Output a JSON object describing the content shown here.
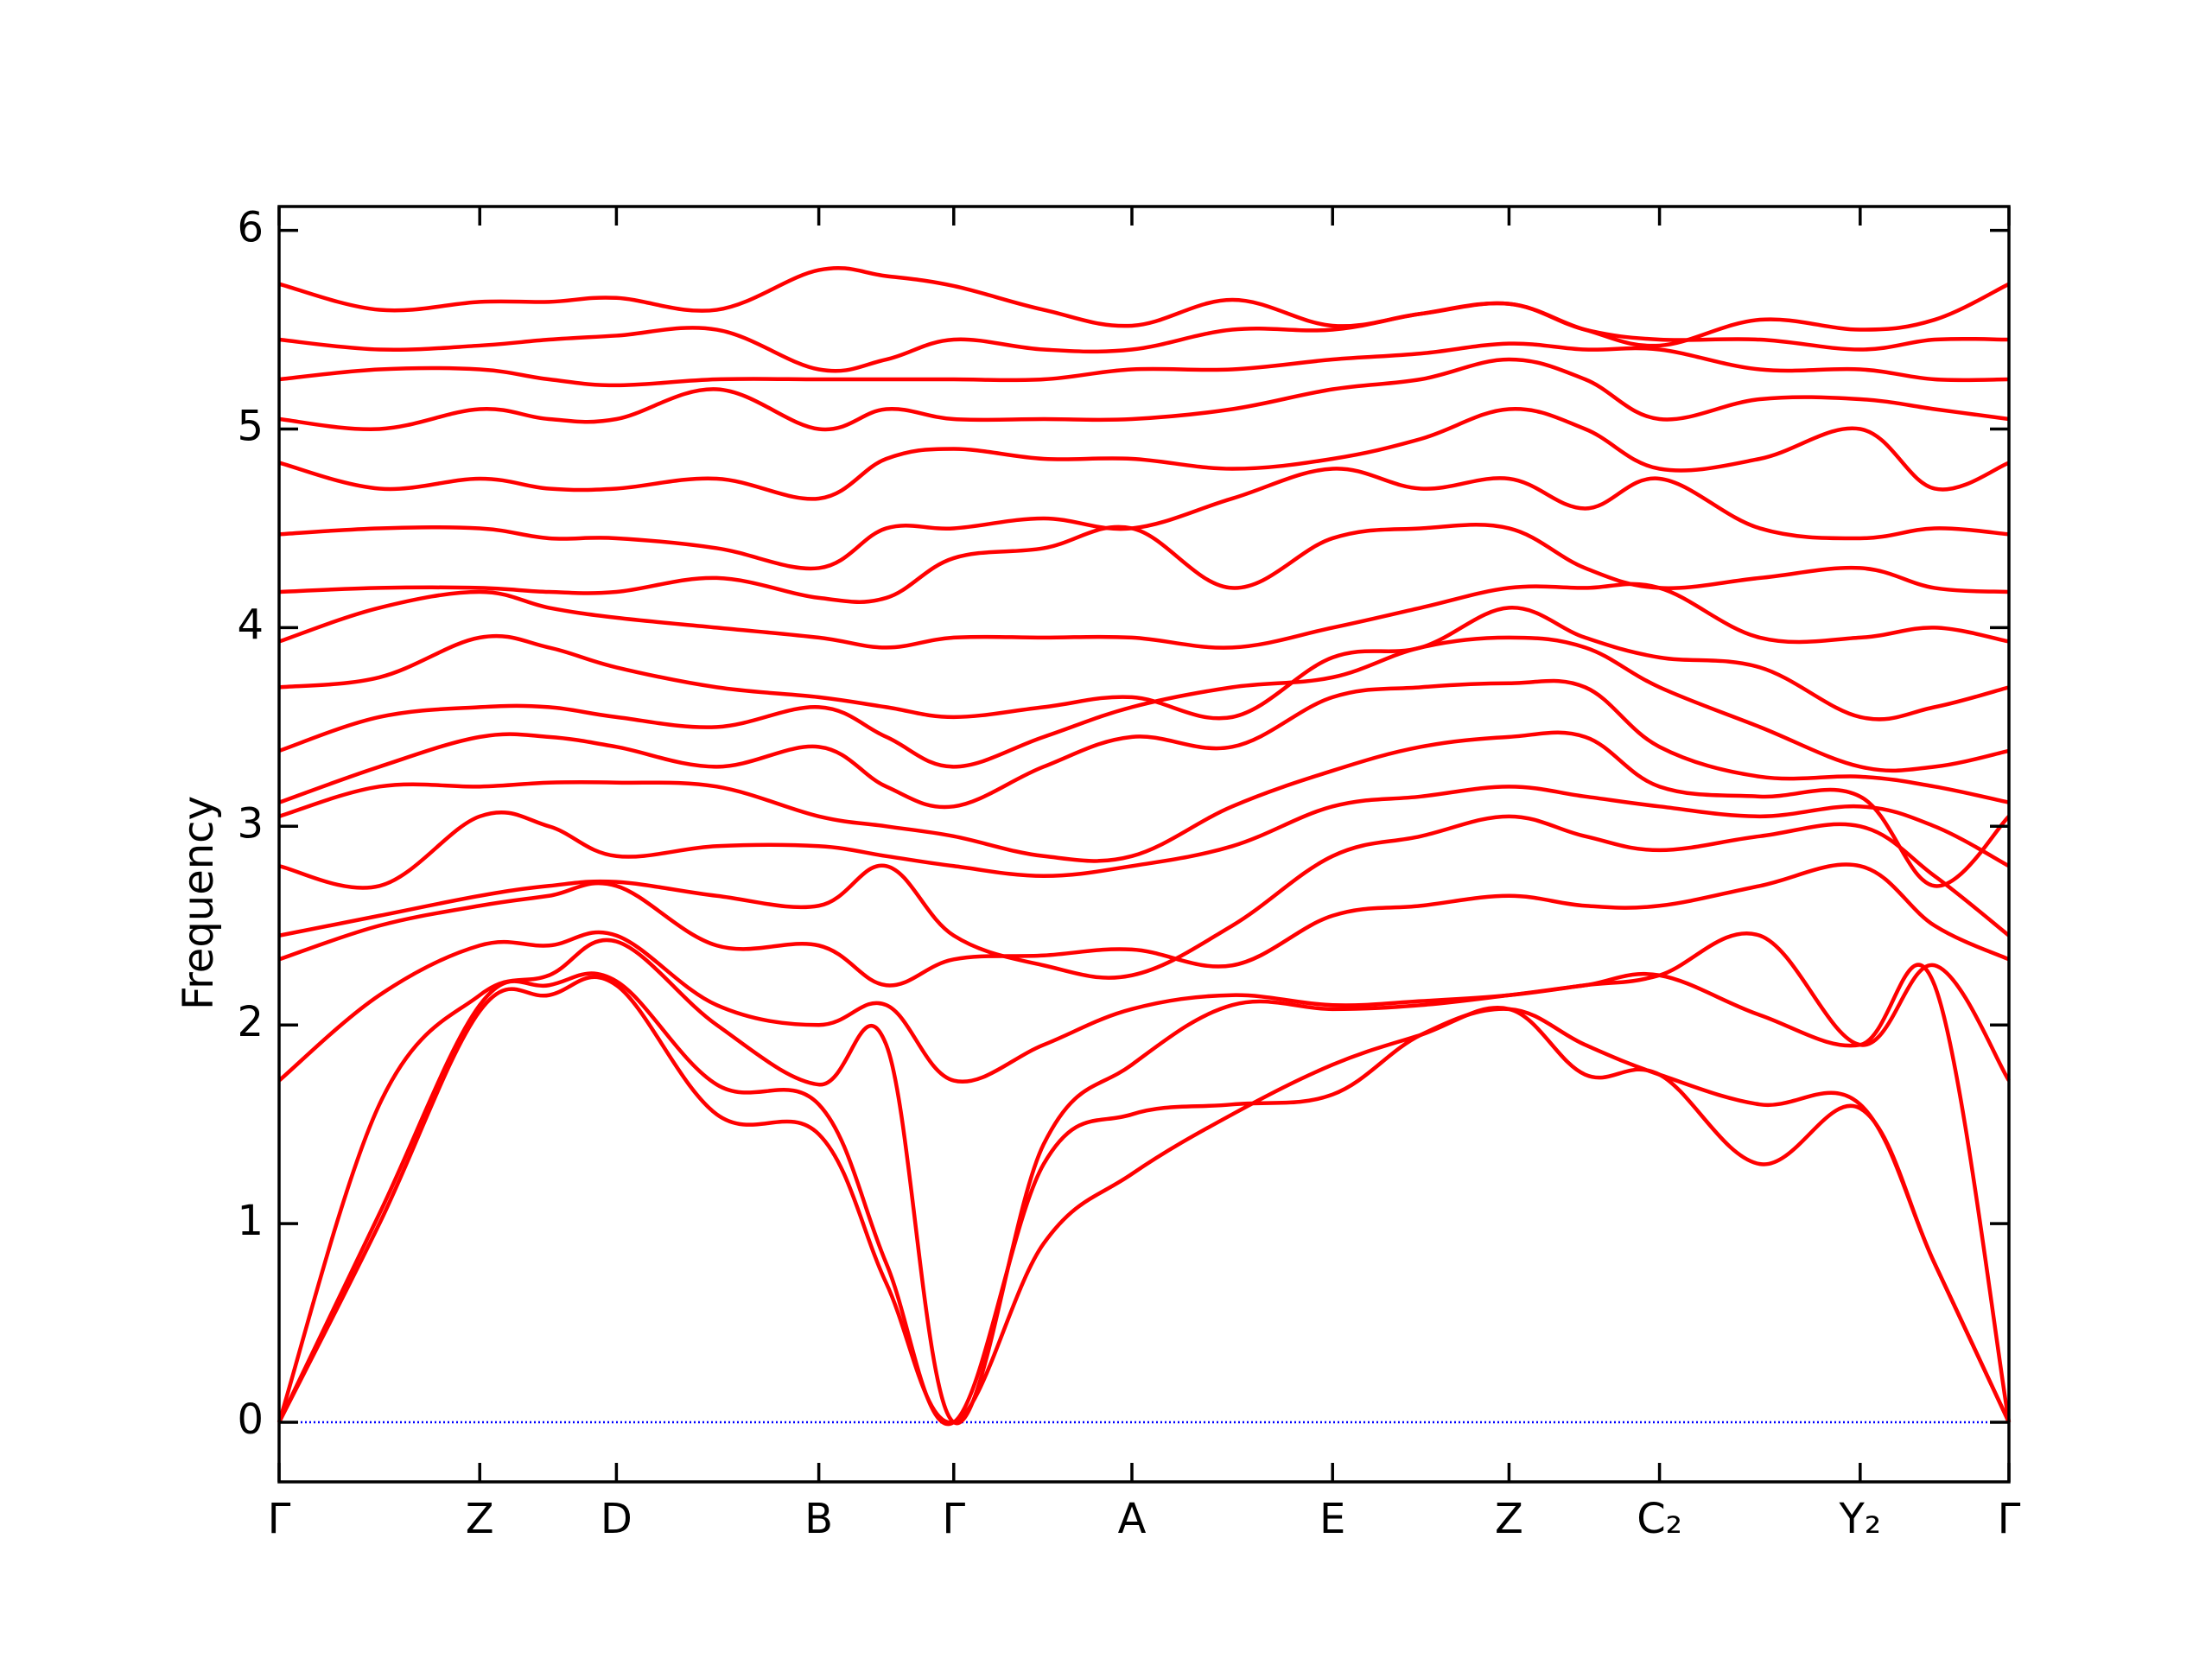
{
  "chart_data": {
    "type": "line",
    "y_label": "Frequency",
    "x": [
      0,
      0.058,
      0.116,
      0.156,
      0.195,
      0.253,
      0.312,
      0.351,
      0.39,
      0.442,
      0.493,
      0.551,
      0.609,
      0.66,
      0.711,
      0.755,
      0.798,
      0.856,
      0.914,
      0.957,
      1.0
    ],
    "xlim": [
      0,
      1
    ],
    "xticks": [
      {
        "value": 0,
        "label": "Γ"
      },
      {
        "value": 0.116,
        "label": "Z"
      },
      {
        "value": 0.195,
        "label": "D"
      },
      {
        "value": 0.312,
        "label": "B"
      },
      {
        "value": 0.39,
        "label": "Γ"
      },
      {
        "value": 0.493,
        "label": "A"
      },
      {
        "value": 0.609,
        "label": "E"
      },
      {
        "value": 0.711,
        "label": "Z"
      },
      {
        "value": 0.798,
        "label": "C₂"
      },
      {
        "value": 0.914,
        "label": "Y₂"
      },
      {
        "value": 1.0,
        "label": "Γ"
      }
    ],
    "ylim": [
      -0.3,
      6.12
    ],
    "yticks": [
      0,
      1,
      2,
      3,
      4,
      5,
      6
    ],
    "zero_line": 0,
    "zero_line_color": "#0000ff",
    "series": [
      {
        "color": "#ff0000",
        "values": [
          0,
          1.0,
          2.07,
          2.15,
          2.2,
          1.55,
          1.45,
          0.7,
          0,
          0.9,
          1.25,
          1.55,
          1.8,
          1.95,
          2.08,
          1.75,
          1.75,
          1.3,
          1.58,
          0.8,
          0
        ]
      },
      {
        "color": "#ff0000",
        "values": [
          0,
          1.05,
          2.1,
          2.2,
          2.22,
          1.7,
          1.6,
          0.8,
          0,
          1.3,
          1.55,
          1.6,
          1.65,
          1.95,
          2.08,
          1.9,
          1.75,
          1.6,
          1.6,
          0.8,
          0
        ]
      },
      {
        "color": "#ff0000",
        "values": [
          0,
          1.6,
          2.15,
          2.25,
          2.42,
          2.0,
          1.7,
          1.9,
          0,
          1.4,
          1.8,
          2.1,
          2.08,
          2.1,
          2.15,
          2.2,
          2.25,
          2.05,
          1.9,
          2.2,
          0
        ]
      },
      {
        "color": "#ff0000",
        "values": [
          1.72,
          2.15,
          2.4,
          2.4,
          2.45,
          2.1,
          2.0,
          2.1,
          1.72,
          1.9,
          2.08,
          2.15,
          2.1,
          2.12,
          2.15,
          2.2,
          2.25,
          2.45,
          1.9,
          2.3,
          1.72
        ]
      },
      {
        "color": "#ff0000",
        "values": [
          2.33,
          2.5,
          2.6,
          2.65,
          2.7,
          2.4,
          2.4,
          2.2,
          2.33,
          2.35,
          2.38,
          2.3,
          2.55,
          2.6,
          2.65,
          2.6,
          2.6,
          2.7,
          2.8,
          2.5,
          2.33
        ]
      },
      {
        "color": "#ff0000",
        "values": [
          2.45,
          2.55,
          2.65,
          2.7,
          2.72,
          2.65,
          2.6,
          2.8,
          2.45,
          2.3,
          2.25,
          2.5,
          2.85,
          2.95,
          3.05,
          2.95,
          2.88,
          2.95,
          3.0,
          2.75,
          2.45
        ]
      },
      {
        "color": "#ff0000",
        "values": [
          2.8,
          2.7,
          3.05,
          3.0,
          2.85,
          2.9,
          2.9,
          2.85,
          2.8,
          2.75,
          2.8,
          2.9,
          3.1,
          3.15,
          3.2,
          3.15,
          3.1,
          3.05,
          3.1,
          3.0,
          2.8
        ]
      },
      {
        "color": "#ff0000",
        "values": [
          3.05,
          3.2,
          3.2,
          3.22,
          3.22,
          3.2,
          3.05,
          3.0,
          2.95,
          2.85,
          2.85,
          3.1,
          3.28,
          3.4,
          3.45,
          3.45,
          3.2,
          3.15,
          3.15,
          2.7,
          3.05
        ]
      },
      {
        "color": "#ff0000",
        "values": [
          3.12,
          3.3,
          3.45,
          3.45,
          3.4,
          3.3,
          3.4,
          3.2,
          3.1,
          3.3,
          3.45,
          3.4,
          3.65,
          3.7,
          3.72,
          3.7,
          3.4,
          3.25,
          3.25,
          3.2,
          3.12
        ]
      },
      {
        "color": "#ff0000",
        "values": [
          3.38,
          3.55,
          3.6,
          3.6,
          3.55,
          3.5,
          3.6,
          3.45,
          3.3,
          3.45,
          3.6,
          3.7,
          3.75,
          3.9,
          3.95,
          3.9,
          3.7,
          3.5,
          3.3,
          3.3,
          3.38
        ]
      },
      {
        "color": "#ff0000",
        "values": [
          3.7,
          3.75,
          3.95,
          3.9,
          3.8,
          3.7,
          3.65,
          3.6,
          3.55,
          3.6,
          3.65,
          3.55,
          3.85,
          3.9,
          4.1,
          3.95,
          3.85,
          3.8,
          3.55,
          3.6,
          3.7
        ]
      },
      {
        "color": "#ff0000",
        "values": [
          3.93,
          4.1,
          4.18,
          4.1,
          4.05,
          4.0,
          3.95,
          3.9,
          3.95,
          3.95,
          3.95,
          3.9,
          4.0,
          4.1,
          4.2,
          4.2,
          4.2,
          3.95,
          3.95,
          4.0,
          3.93
        ]
      },
      {
        "color": "#ff0000",
        "values": [
          4.18,
          4.2,
          4.2,
          4.18,
          4.18,
          4.25,
          4.15,
          4.15,
          4.35,
          4.4,
          4.5,
          4.2,
          4.45,
          4.5,
          4.5,
          4.3,
          4.2,
          4.25,
          4.3,
          4.2,
          4.18
        ]
      },
      {
        "color": "#ff0000",
        "values": [
          4.47,
          4.5,
          4.5,
          4.45,
          4.45,
          4.4,
          4.3,
          4.5,
          4.5,
          4.55,
          4.5,
          4.65,
          4.8,
          4.7,
          4.75,
          4.6,
          4.75,
          4.5,
          4.45,
          4.5,
          4.47
        ]
      },
      {
        "color": "#ff0000",
        "values": [
          4.83,
          4.7,
          4.75,
          4.7,
          4.7,
          4.75,
          4.65,
          4.85,
          4.9,
          4.85,
          4.85,
          4.8,
          4.85,
          4.95,
          5.1,
          5.0,
          4.8,
          4.85,
          5.0,
          4.7,
          4.83
        ]
      },
      {
        "color": "#ff0000",
        "values": [
          5.05,
          5.0,
          5.1,
          5.05,
          5.05,
          5.2,
          5.0,
          5.1,
          5.05,
          5.05,
          5.05,
          5.1,
          5.2,
          5.25,
          5.35,
          5.25,
          5.05,
          5.15,
          5.15,
          5.1,
          5.05
        ]
      },
      {
        "color": "#ff0000",
        "values": [
          5.25,
          5.3,
          5.3,
          5.25,
          5.22,
          5.25,
          5.25,
          5.25,
          5.25,
          5.25,
          5.3,
          5.3,
          5.35,
          5.38,
          5.43,
          5.4,
          5.4,
          5.3,
          5.3,
          5.25,
          5.25
        ]
      },
      {
        "color": "#ff0000",
        "values": [
          5.45,
          5.4,
          5.42,
          5.45,
          5.47,
          5.5,
          5.3,
          5.35,
          5.45,
          5.4,
          5.4,
          5.5,
          5.5,
          5.58,
          5.63,
          5.5,
          5.45,
          5.45,
          5.4,
          5.45,
          5.45
        ]
      },
      {
        "color": "#ff0000",
        "values": [
          5.73,
          5.6,
          5.64,
          5.64,
          5.66,
          5.6,
          5.8,
          5.77,
          5.72,
          5.6,
          5.52,
          5.65,
          5.52,
          5.58,
          5.63,
          5.5,
          5.42,
          5.55,
          5.5,
          5.55,
          5.73
        ]
      }
    ]
  }
}
